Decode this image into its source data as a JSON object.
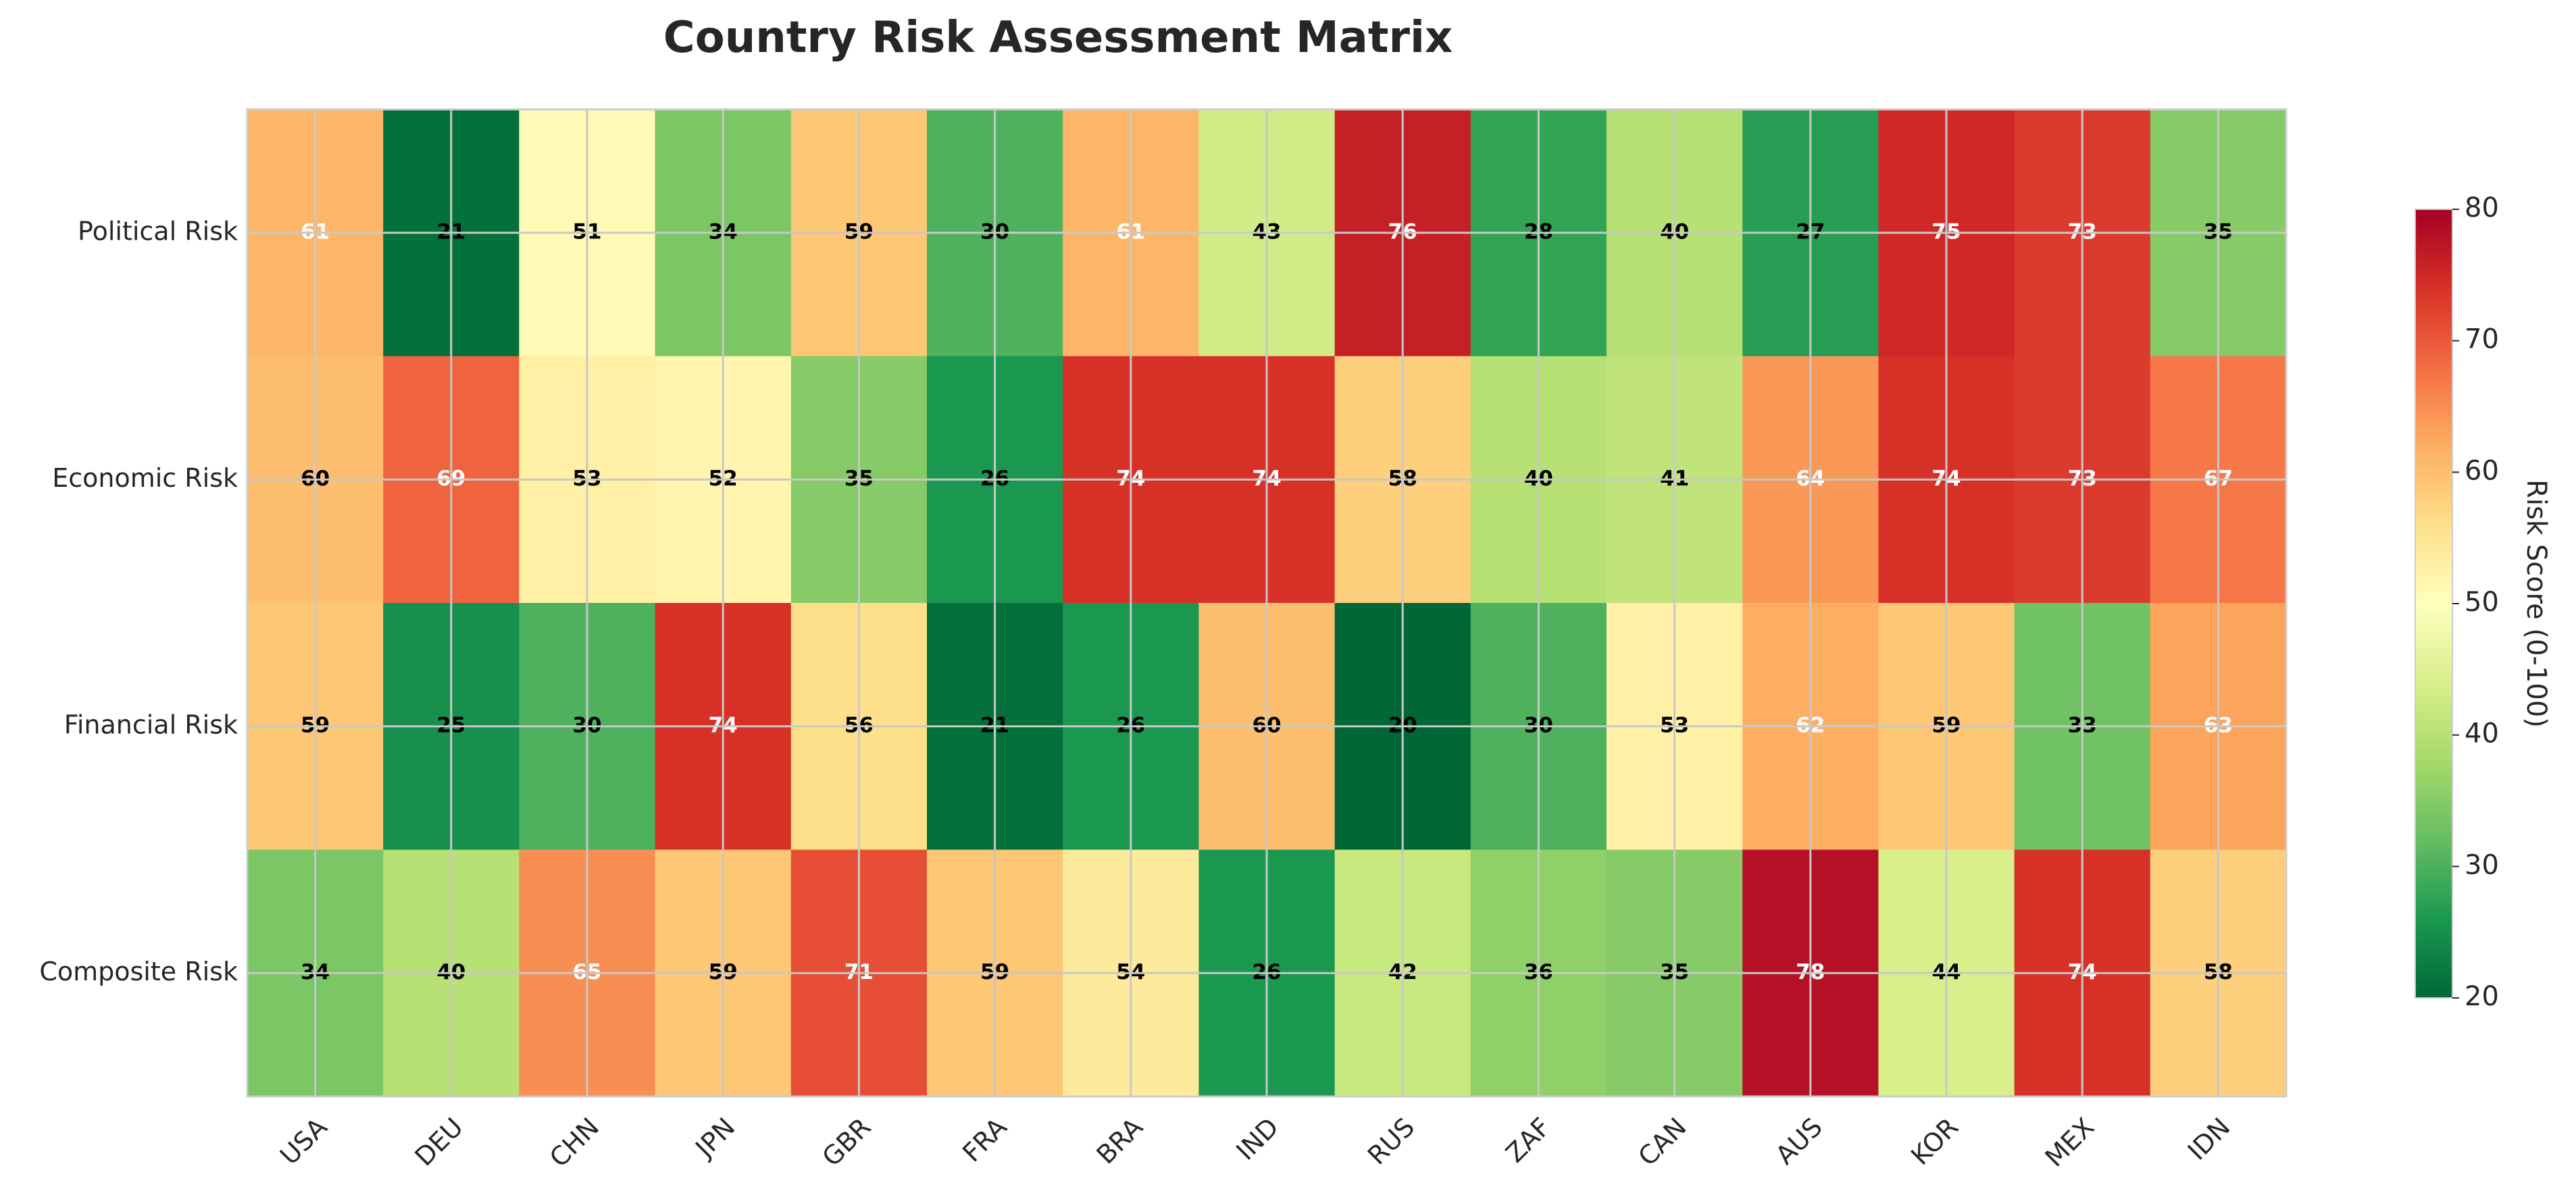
{
  "chart_data": {
    "type": "heatmap",
    "title": "Country Risk Assessment Matrix",
    "rows": [
      "Political Risk",
      "Economic Risk",
      "Financial Risk",
      "Composite Risk"
    ],
    "columns": [
      "USA",
      "DEU",
      "CHN",
      "JPN",
      "GBR",
      "FRA",
      "BRA",
      "IND",
      "RUS",
      "ZAF",
      "CAN",
      "AUS",
      "KOR",
      "MEX",
      "IDN"
    ],
    "values": [
      [
        61,
        21,
        51,
        34,
        59,
        30,
        61,
        43,
        76,
        28,
        40,
        27,
        75,
        73,
        35
      ],
      [
        60,
        69,
        53,
        52,
        35,
        26,
        74,
        74,
        58,
        40,
        41,
        64,
        74,
        73,
        67
      ],
      [
        59,
        25,
        30,
        74,
        56,
        21,
        26,
        60,
        20,
        30,
        53,
        62,
        59,
        33,
        63
      ],
      [
        34,
        40,
        65,
        59,
        71,
        59,
        54,
        26,
        42,
        36,
        35,
        78,
        44,
        74,
        58
      ]
    ],
    "colorbar": {
      "label": "Risk Score (0-100)",
      "range": [
        20,
        80
      ],
      "ticks": [
        "20",
        "30",
        "40",
        "50",
        "60",
        "70",
        "80"
      ],
      "colormap": "RdYlGn_r"
    },
    "grid": true,
    "legend": "colorbar-right"
  }
}
